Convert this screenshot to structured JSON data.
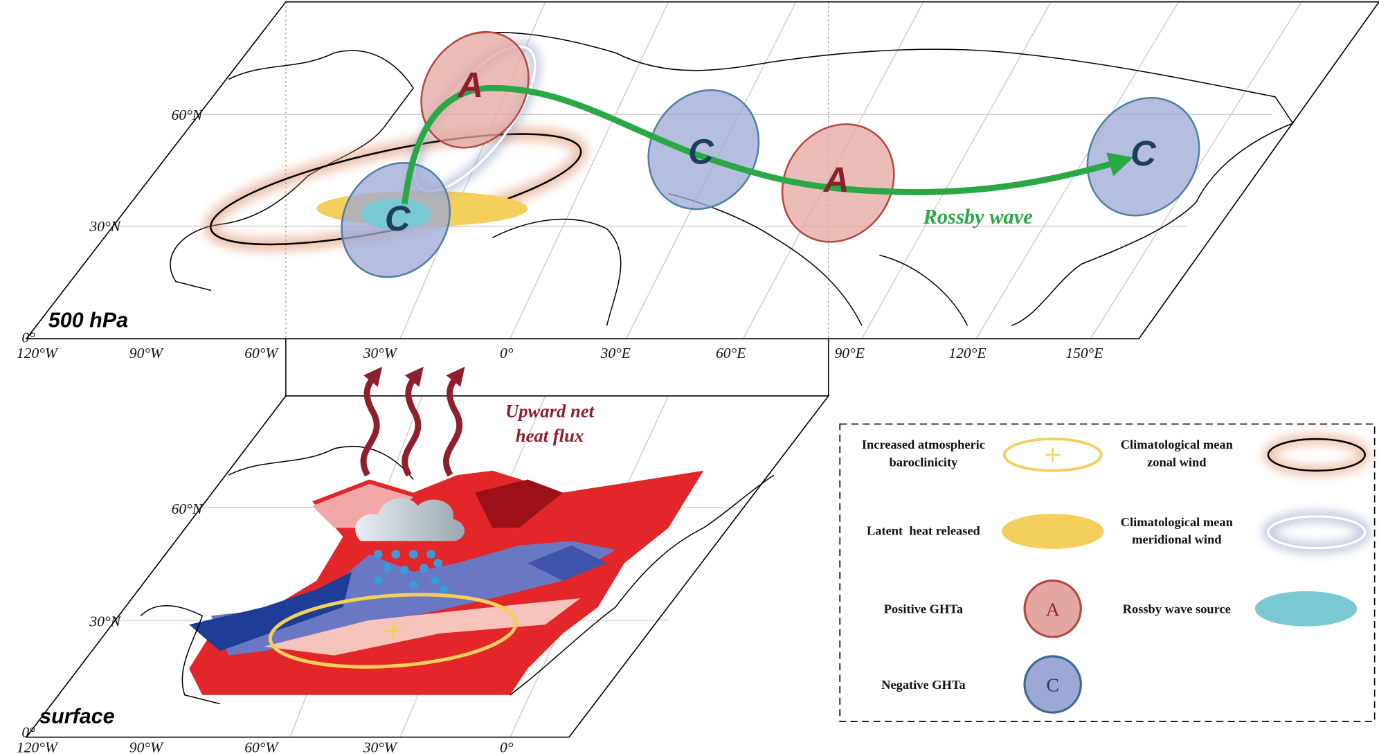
{
  "top_panel": {
    "label": "500 hPa",
    "latitude_labels": [
      "60°N",
      "30°N",
      "0°"
    ],
    "longitude_labels": [
      "120°W",
      "90°W",
      "60°W",
      "30°W",
      "0°",
      "30°E",
      "60°E",
      "90°E",
      "120°E",
      "150°E"
    ],
    "centers": [
      "A",
      "C",
      "C",
      "A",
      "C"
    ],
    "rossby_wave_label": "Rossby wave"
  },
  "bottom_panel": {
    "label": "surface",
    "latitude_labels": [
      "60°N",
      "30°N",
      "0°"
    ],
    "longitude_labels": [
      "120°W",
      "90°W",
      "60°W",
      "30°W",
      "0°"
    ],
    "heat_flux_label": [
      "Upward net",
      "heat flux"
    ]
  },
  "legend": {
    "items": [
      {
        "label": [
          "Increased atmospheric",
          "baroclinicity"
        ]
      },
      {
        "label": [
          "Climatological mean",
          "zonal wind"
        ]
      },
      {
        "label": [
          "Latent  heat released"
        ]
      },
      {
        "label": [
          "Climatological mean",
          "meridional wind"
        ]
      },
      {
        "label": [
          "Positive GHTa"
        ],
        "symbol": "A"
      },
      {
        "label": [
          "Rossby wave source"
        ]
      },
      {
        "label": [
          "Negative GHTa"
        ],
        "symbol": "C"
      }
    ]
  }
}
